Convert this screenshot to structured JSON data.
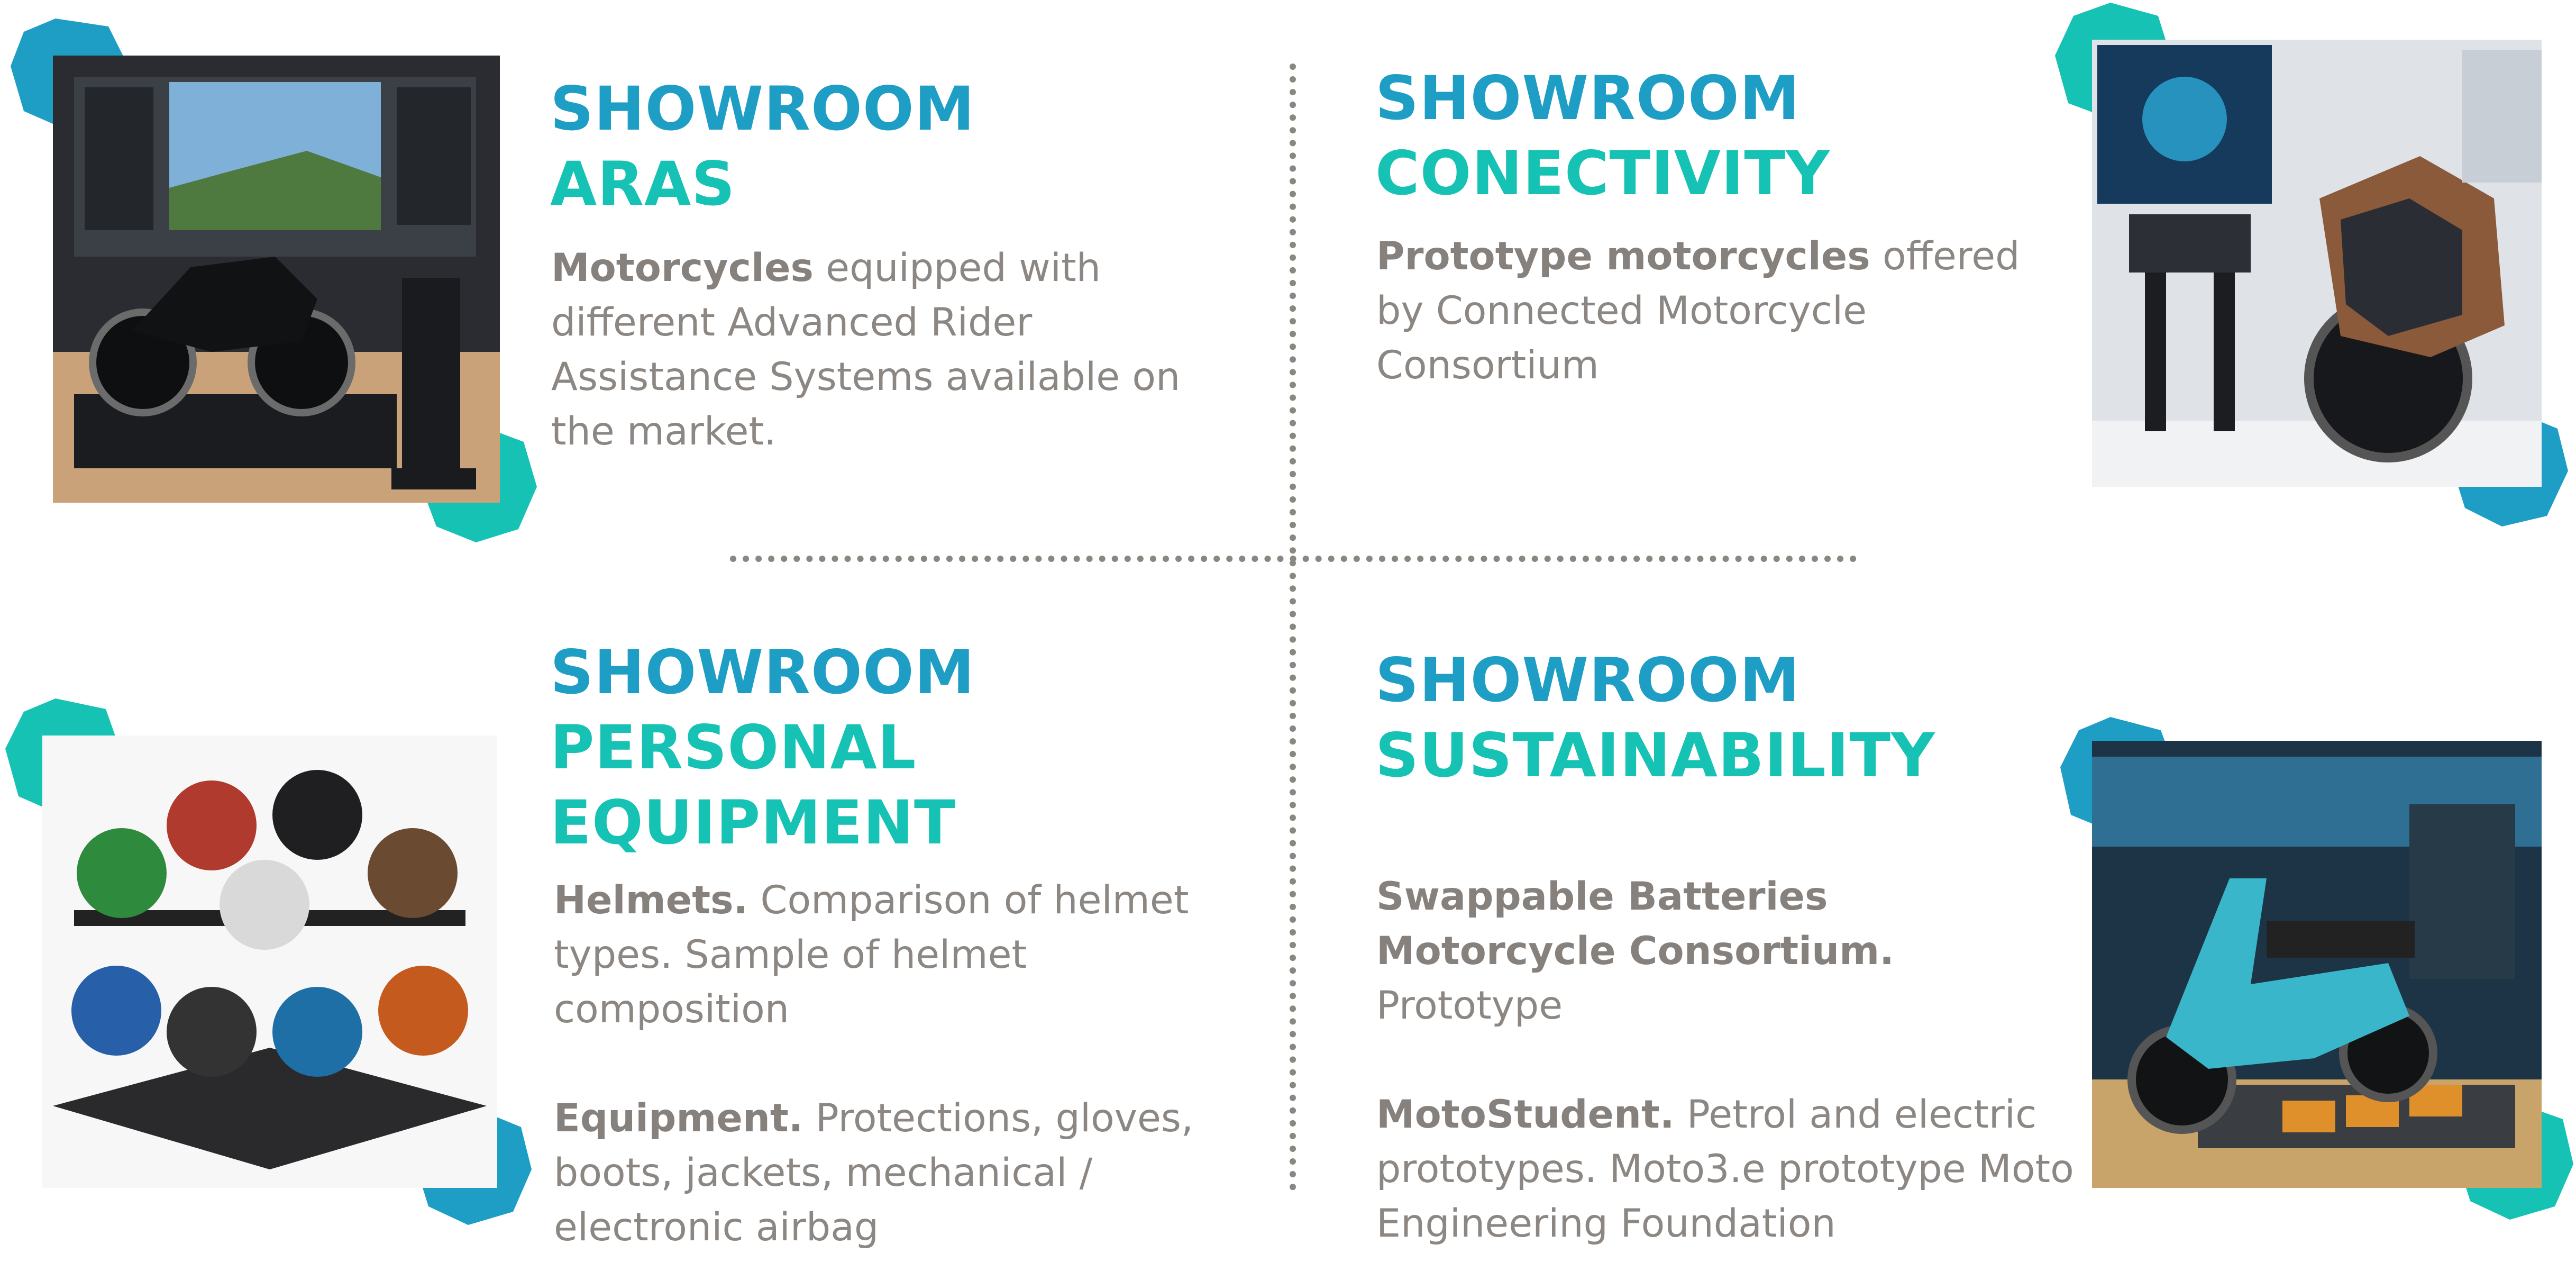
{
  "colors": {
    "accent_blue": "#1e9ec4",
    "accent_teal": "#16c2b3",
    "text_gray": "#8c8782",
    "divider": "#8a8680"
  },
  "sections": {
    "aras": {
      "title_1": "SHOWROOM",
      "title_2": "ARAS",
      "desc_bold": "Motorcycles",
      "desc_text": " equipped with different Advanced Rider Assistance Systems available on the market.",
      "image_icon": "motorcycle-showroom-photo"
    },
    "connectivity": {
      "title_1": "SHOWROOM",
      "title_2": "CONECTIVITY",
      "desc_bold": "Prototype motorcycles",
      "desc_text": " offered by Connected Motorcycle Consortium",
      "image_icon": "connected-motorcycle-photo"
    },
    "personal": {
      "title_1": "SHOWROOM",
      "title_2": "PERSONAL",
      "title_3": "EQUIPMENT",
      "p1_bold": "Helmets.",
      "p1_text": " Comparison of helmet types. Sample of helmet composition",
      "p2_bold": "Equipment.",
      "p2_text": " Protections, gloves, boots, jackets, mechanical / electronic airbag",
      "image_icon": "helmet-display-photo"
    },
    "sustainability": {
      "title_1": "SHOWROOM",
      "title_2": "SUSTAINABILITY",
      "p1_bold": "Swappable Batteries Motorcycle Consortium.",
      "p1_text": " Prototype",
      "p2_bold": "MotoStudent.",
      "p2_text": " Petrol and electric prototypes. Moto3.e prototype Moto Engineering Foundation",
      "image_icon": "electric-scooter-photo"
    }
  }
}
